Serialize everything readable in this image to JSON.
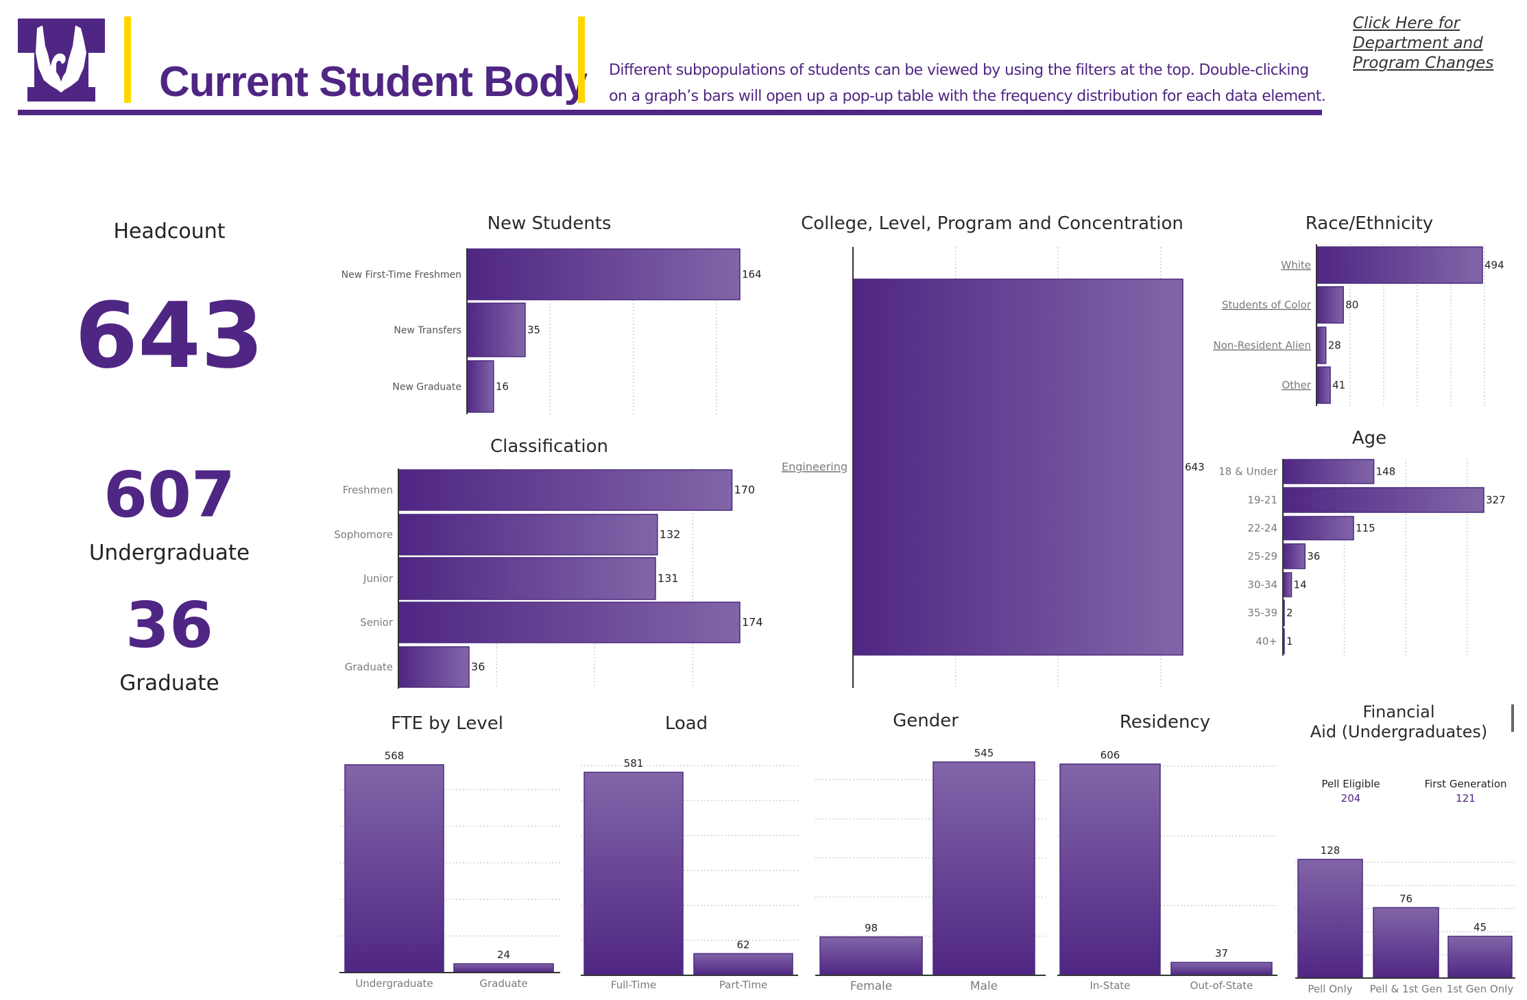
{
  "header": {
    "title": "Current Student Body",
    "description_line1": "Different subpopulations of students can be viewed by using the  filters at the top. Double-clicking",
    "description_line2": "on a graph’s bars will open up a pop-up table with the frequency distribution for each data element.",
    "link_lines": [
      "Click Here for",
      "Department and",
      "Program Changes"
    ],
    "logo_icon": "eagle-t-logo",
    "colors": {
      "brand_purple": "#4f2683",
      "accent_yellow": "#ffd700",
      "bar_light": "#8265a8"
    }
  },
  "headcount": {
    "label": "Headcount",
    "total": "643",
    "undergraduate_value": "607",
    "undergraduate_label": "Undergraduate",
    "graduate_value": "36",
    "graduate_label": "Graduate"
  },
  "chart_data": [
    {
      "id": "new_students",
      "type": "bar",
      "orientation": "horizontal",
      "title": "New Students",
      "categories": [
        "New First-Time Freshmen",
        "New Transfers",
        "New Graduate"
      ],
      "values": [
        164,
        35,
        16
      ],
      "xlim": [
        0,
        175
      ],
      "gridlines": [
        50,
        100,
        150
      ]
    },
    {
      "id": "classification",
      "type": "bar",
      "orientation": "horizontal",
      "title": "Classification",
      "categories": [
        "Freshmen",
        "Sophomore",
        "Junior",
        "Senior",
        "Graduate"
      ],
      "values": [
        170,
        132,
        131,
        174,
        36
      ],
      "xlim": [
        0,
        190
      ],
      "gridlines": [
        50,
        100,
        150
      ]
    },
    {
      "id": "college",
      "type": "bar",
      "orientation": "horizontal",
      "title": "College, Level, Program and Concentration",
      "categories": [
        "Engineering"
      ],
      "values": [
        643
      ],
      "xlim": [
        0,
        700
      ],
      "gridlines": [
        200,
        400,
        600
      ],
      "category_links": true
    },
    {
      "id": "race",
      "type": "bar",
      "orientation": "horizontal",
      "title": "Race/Ethnicity",
      "categories": [
        "White",
        "Students of Color",
        "Non-Resident Alien",
        "Other"
      ],
      "values": [
        494,
        80,
        28,
        41
      ],
      "xlim": [
        0,
        520
      ],
      "gridlines": [
        100,
        200,
        300,
        400,
        500
      ],
      "category_links": true
    },
    {
      "id": "age",
      "type": "bar",
      "orientation": "horizontal",
      "title": "Age",
      "categories": [
        "18 & Under",
        "19-21",
        "22-24",
        "25-29",
        "30-34",
        "35-39",
        "40+"
      ],
      "values": [
        148,
        327,
        115,
        36,
        14,
        2,
        1
      ],
      "xlim": [
        0,
        350
      ],
      "gridlines": [
        100,
        200,
        300
      ]
    },
    {
      "id": "fte",
      "type": "bar",
      "orientation": "vertical",
      "title": "FTE by Level",
      "categories": [
        "Undergraduate",
        "Graduate"
      ],
      "values": [
        568,
        24
      ],
      "ylim": [
        0,
        568
      ],
      "gridlines": [
        100,
        200,
        300,
        400,
        500
      ]
    },
    {
      "id": "load",
      "type": "bar",
      "orientation": "vertical",
      "title": "Load",
      "categories": [
        "Full-Time",
        "Part-Time"
      ],
      "values": [
        581,
        62
      ],
      "ylim": [
        0,
        581
      ],
      "gridlines": [
        100,
        200,
        300,
        400,
        500,
        600
      ]
    },
    {
      "id": "gender",
      "type": "bar",
      "orientation": "vertical",
      "title": "Gender",
      "categories": [
        "Female",
        "Male"
      ],
      "values": [
        98,
        545
      ],
      "ylim": [
        0,
        545
      ],
      "gridlines": [
        100,
        200,
        300,
        400,
        500
      ]
    },
    {
      "id": "residency",
      "type": "bar",
      "orientation": "vertical",
      "title": "Residency",
      "categories": [
        "In-State",
        "Out-of-State"
      ],
      "values": [
        606,
        37
      ],
      "ylim": [
        0,
        606
      ],
      "gridlines": [
        200,
        400,
        600
      ]
    },
    {
      "id": "finaid",
      "type": "bar",
      "orientation": "vertical",
      "title_line1": "Financial",
      "title_line2": "Aid (Undergraduates)",
      "categories": [
        "Pell Only",
        "Pell & 1st Gen",
        "1st Gen Only"
      ],
      "values": [
        128,
        76,
        45
      ],
      "ylim": [
        0,
        128
      ],
      "gridlines": [
        25,
        50,
        75,
        100,
        125
      ]
    }
  ],
  "financial_aid_summary": {
    "pell_label": "Pell Eligible",
    "pell_value": "204",
    "firstgen_label": "First Generation",
    "firstgen_value": "121"
  }
}
